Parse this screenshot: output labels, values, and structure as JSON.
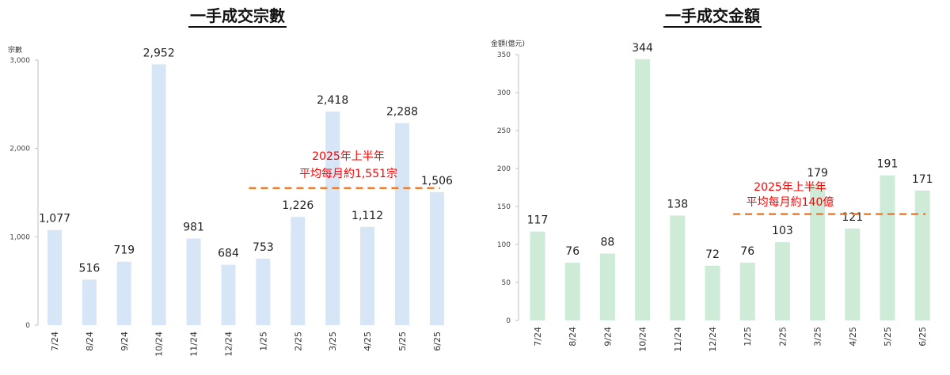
{
  "charts": [
    {
      "title": "一手成交宗數",
      "unit_label": "宗數",
      "annotation": [
        "2025年上半年",
        "平均每月約1,551宗"
      ]
    },
    {
      "title": "一手成交金額",
      "unit_label": "金額(億元)",
      "annotation": [
        "2025年上半年",
        "平均每月約140億"
      ]
    }
  ],
  "chart_data": [
    {
      "type": "bar",
      "title": "一手成交宗數",
      "ylabel": "宗數",
      "categories": [
        "7/24",
        "8/24",
        "9/24",
        "10/24",
        "11/24",
        "12/24",
        "1/25",
        "2/25",
        "3/25",
        "4/25",
        "5/25",
        "6/25"
      ],
      "values": [
        1077,
        516,
        719,
        2952,
        981,
        684,
        753,
        1226,
        2418,
        1112,
        2288,
        1506
      ],
      "value_labels": [
        "1,077",
        "516",
        "719",
        "2,952",
        "981",
        "684",
        "753",
        "1,226",
        "2,418",
        "1,112",
        "2,288",
        "1,506"
      ],
      "ylim": [
        0,
        3000
      ],
      "yticks": [
        0,
        1000,
        2000,
        3000
      ],
      "ytick_labels": [
        "0",
        "1,000",
        "2,000",
        "3,000"
      ],
      "average_line": {
        "value": 1551,
        "from": "1/25",
        "to": "6/25",
        "color": "#ee7d31",
        "style": "dashed"
      },
      "bar_color": "#d6e6f6",
      "grid": false
    },
    {
      "type": "bar",
      "title": "一手成交金額",
      "ylabel": "金額(億元)",
      "categories": [
        "7/24",
        "8/24",
        "9/24",
        "10/24",
        "11/24",
        "12/24",
        "1/25",
        "2/25",
        "3/25",
        "4/25",
        "5/25",
        "6/25"
      ],
      "values": [
        117,
        76,
        88,
        344,
        138,
        72,
        76,
        103,
        179,
        121,
        191,
        171
      ],
      "value_labels": [
        "117",
        "76",
        "88",
        "344",
        "138",
        "72",
        "76",
        "103",
        "179",
        "121",
        "191",
        "171"
      ],
      "ylim": [
        0,
        350
      ],
      "yticks": [
        0,
        50,
        100,
        150,
        200,
        250,
        300,
        350
      ],
      "ytick_labels": [
        "0",
        "50",
        "100",
        "150",
        "200",
        "250",
        "300",
        "350"
      ],
      "average_line": {
        "value": 140,
        "from": "1/25",
        "to": "6/25",
        "color": "#ee7d31",
        "style": "dashed"
      },
      "bar_color": "#cdebd6",
      "grid": false
    }
  ]
}
